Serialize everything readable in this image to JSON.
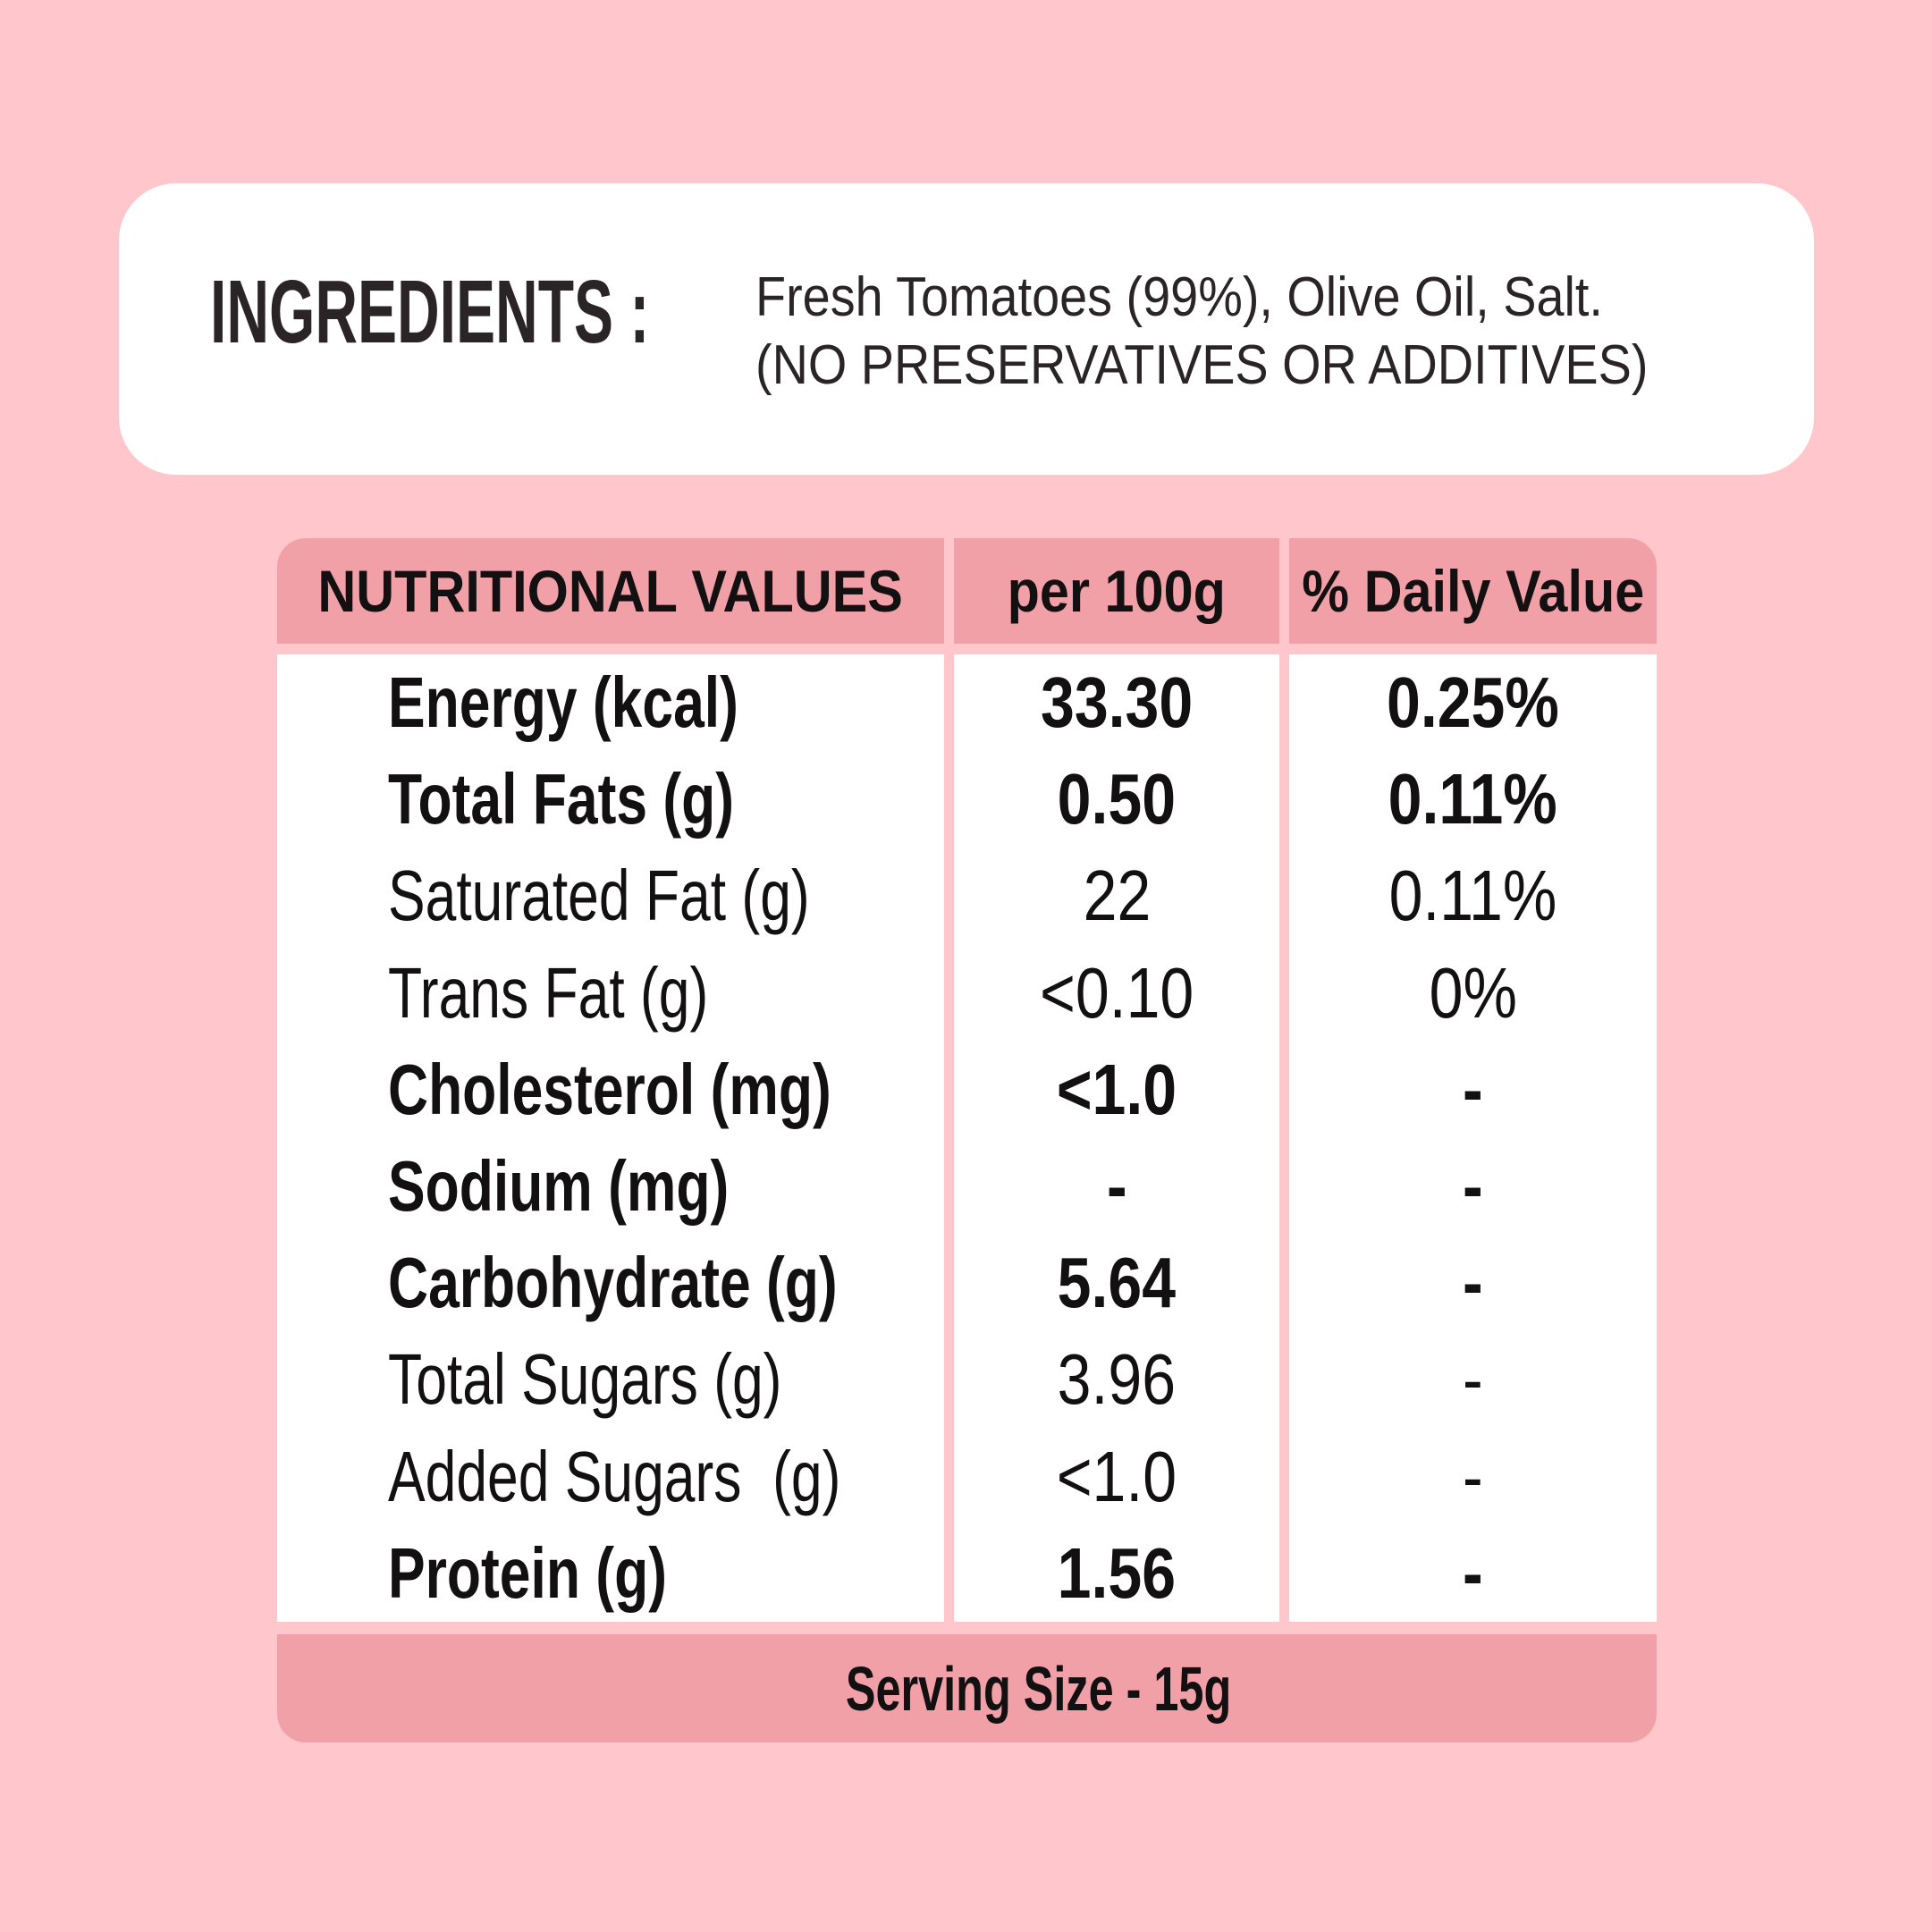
{
  "colors": {
    "background": "#FFC6CB",
    "card": "#FFFFFF",
    "band_pink": "#F2A0A7",
    "text_dark": "#2B2426",
    "table_text": "#121011"
  },
  "ingredients": {
    "heading": "INGREDIENTS :",
    "line1": "Fresh Tomatoes (99%), Olive Oil, Salt.",
    "line2": "(NO PRESERVATIVES OR ADDITIVES)"
  },
  "table": {
    "headers": {
      "col1": "NUTRITIONAL VALUES",
      "col2": "per 100g",
      "col3": "% Daily Value"
    },
    "rows": [
      {
        "label": "Energy (kcal)",
        "per100": "33.30",
        "daily": "0.25%",
        "bold": true
      },
      {
        "label": "Total Fats (g)",
        "per100": "0.50",
        "daily": "0.11%",
        "bold": true
      },
      {
        "label": "Saturated Fat (g)",
        "per100": "22",
        "daily": "0.11%",
        "bold": false
      },
      {
        "label": "Trans Fat (g)",
        "per100": "<0.10",
        "daily": "0%",
        "bold": false
      },
      {
        "label": "Cholesterol (mg)",
        "per100": "<1.0",
        "daily": "-",
        "bold": true
      },
      {
        "label": "Sodium (mg)",
        "per100": "-",
        "daily": "-",
        "bold": true
      },
      {
        "label": "Carbohydrate (g)",
        "per100": "5.64",
        "daily": "-",
        "bold": true
      },
      {
        "label": "Total Sugars (g)",
        "per100": "3.96",
        "daily": "-",
        "bold": false
      },
      {
        "label": "Added Sugars  (g)",
        "per100": "<1.0",
        "daily": "-",
        "bold": false
      },
      {
        "label": "Protein (g)",
        "per100": "1.56",
        "daily": "-",
        "bold": true
      }
    ],
    "footer": "Serving Size - 15g"
  }
}
